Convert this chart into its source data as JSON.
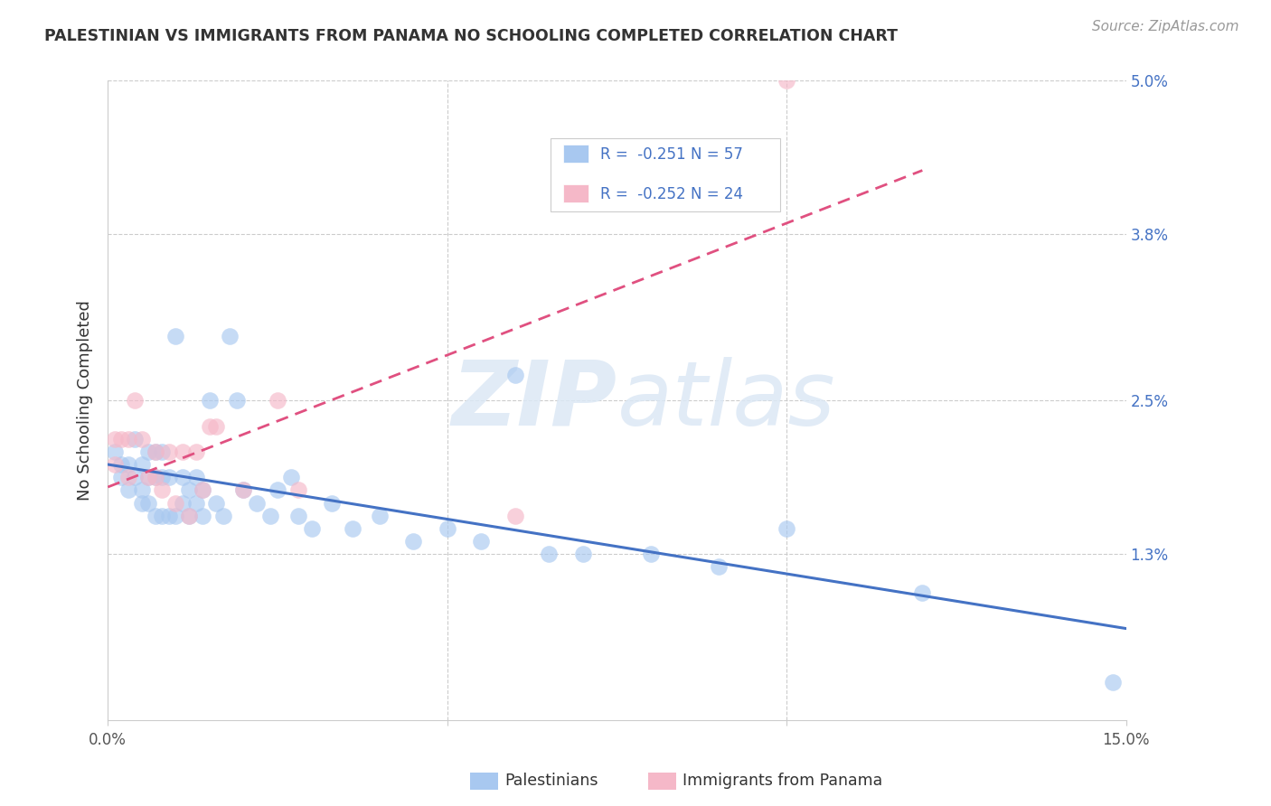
{
  "title": "PALESTINIAN VS IMMIGRANTS FROM PANAMA NO SCHOOLING COMPLETED CORRELATION CHART",
  "source": "Source: ZipAtlas.com",
  "ylabel": "No Schooling Completed",
  "xlim": [
    0.0,
    0.15
  ],
  "ylim": [
    0.0,
    0.05
  ],
  "background_color": "#ffffff",
  "grid_color": "#cccccc",
  "blue_color": "#a8c8f0",
  "pink_color": "#f5b8c8",
  "blue_line_color": "#4472c4",
  "pink_line_color": "#e05080",
  "legend_R1": "-0.251",
  "legend_N1": "57",
  "legend_R2": "-0.252",
  "legend_N2": "24",
  "label1": "Palestinians",
  "label2": "Immigrants from Panama",
  "watermark_zip": "ZIP",
  "watermark_atlas": "atlas",
  "ytick_labels": [
    "1.3%",
    "2.5%",
    "3.8%",
    "5.0%"
  ],
  "ytick_vals": [
    0.013,
    0.025,
    0.038,
    0.05
  ],
  "palestinians_x": [
    0.001,
    0.002,
    0.002,
    0.003,
    0.003,
    0.004,
    0.004,
    0.005,
    0.005,
    0.005,
    0.006,
    0.006,
    0.006,
    0.007,
    0.007,
    0.007,
    0.008,
    0.008,
    0.008,
    0.009,
    0.009,
    0.01,
    0.01,
    0.011,
    0.011,
    0.012,
    0.012,
    0.013,
    0.013,
    0.014,
    0.014,
    0.015,
    0.016,
    0.017,
    0.018,
    0.019,
    0.02,
    0.022,
    0.024,
    0.025,
    0.027,
    0.028,
    0.03,
    0.033,
    0.036,
    0.04,
    0.045,
    0.05,
    0.055,
    0.06,
    0.065,
    0.07,
    0.08,
    0.09,
    0.1,
    0.12,
    0.148
  ],
  "palestinians_y": [
    0.021,
    0.02,
    0.019,
    0.02,
    0.018,
    0.019,
    0.022,
    0.018,
    0.02,
    0.017,
    0.021,
    0.017,
    0.019,
    0.019,
    0.016,
    0.021,
    0.016,
    0.019,
    0.021,
    0.016,
    0.019,
    0.016,
    0.03,
    0.017,
    0.019,
    0.016,
    0.018,
    0.017,
    0.019,
    0.016,
    0.018,
    0.025,
    0.017,
    0.016,
    0.03,
    0.025,
    0.018,
    0.017,
    0.016,
    0.018,
    0.019,
    0.016,
    0.015,
    0.017,
    0.015,
    0.016,
    0.014,
    0.015,
    0.014,
    0.027,
    0.013,
    0.013,
    0.013,
    0.012,
    0.015,
    0.01,
    0.003
  ],
  "panama_x": [
    0.001,
    0.001,
    0.002,
    0.003,
    0.003,
    0.004,
    0.005,
    0.006,
    0.007,
    0.007,
    0.008,
    0.009,
    0.01,
    0.011,
    0.012,
    0.013,
    0.014,
    0.015,
    0.016,
    0.02,
    0.025,
    0.028,
    0.06,
    0.1
  ],
  "panama_y": [
    0.02,
    0.022,
    0.022,
    0.022,
    0.019,
    0.025,
    0.022,
    0.019,
    0.019,
    0.021,
    0.018,
    0.021,
    0.017,
    0.021,
    0.016,
    0.021,
    0.018,
    0.023,
    0.023,
    0.018,
    0.025,
    0.018,
    0.016,
    0.05
  ]
}
